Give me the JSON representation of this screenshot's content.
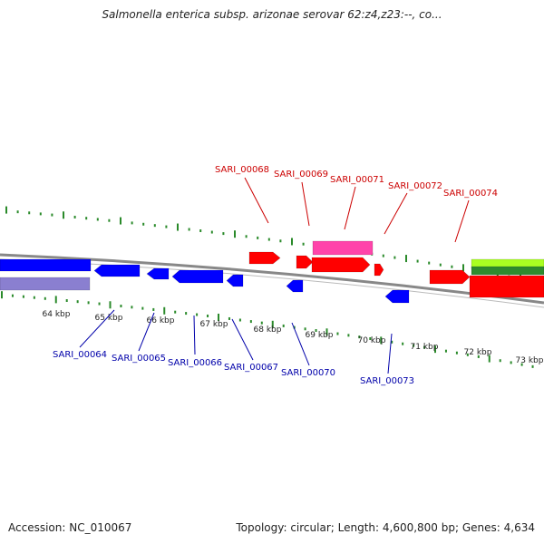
{
  "title": "Salmonella enterica subsp. arizonae serovar 62:z4,z23:--, co...",
  "footer": {
    "accession": "Accession: NC_010067",
    "topology": "Topology: circular",
    "length": "Length: 4,600,800 bp",
    "genes": "Genes: 4,634"
  },
  "colors": {
    "forward_gene": "#ff0000",
    "reverse_gene": "#0000ff",
    "forward_label": "#cc0000",
    "reverse_label": "#0000aa",
    "tick": "#2a8a2a",
    "backbone": "#888888",
    "rna_pink": "#ff44aa",
    "lavender": "#8a7fd0",
    "light_green": "#aaff22",
    "dark_green": "#2e8b2e"
  },
  "kbp_ticks": [
    "64 kbp",
    "65 kbp",
    "66 kbp",
    "67 kbp",
    "68 kbp",
    "69 kbp",
    "70 kbp",
    "71 kbp",
    "72 kbp",
    "73 kbp"
  ],
  "forward_labels": [
    "SARI_00068",
    "SARI_00069",
    "SARI_00071",
    "SARI_00072",
    "SARI_00074"
  ],
  "reverse_labels": [
    "SARI_00064",
    "SARI_00065",
    "SARI_00066",
    "SARI_00067",
    "SARI_00070",
    "SARI_00073"
  ]
}
